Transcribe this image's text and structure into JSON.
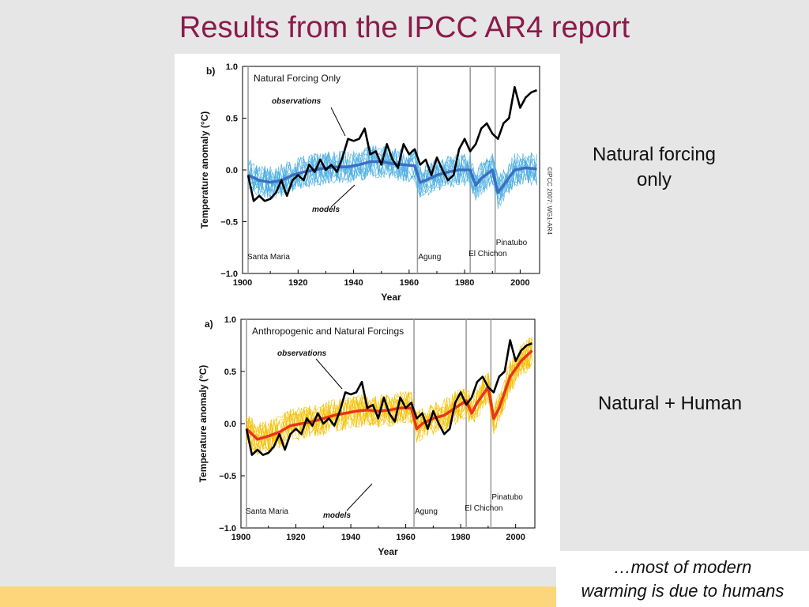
{
  "slide": {
    "title": "Results from the IPCC AR4 report",
    "label_top": "Natural forcing only",
    "label_bottom": "Natural + Human",
    "conclusion_line1": "…most of modern",
    "conclusion_line2": "warming is due to humans"
  },
  "colors": {
    "title": "#8b1a4a",
    "observations": "#000000",
    "natural_models": "#4aaee0",
    "natural_mean": "#3a6fc4",
    "anthro_models": "#f5c000",
    "anthro_mean": "#e8341c",
    "volcano_line": "#999999",
    "footer": "#fdd57a"
  },
  "chart_data": [
    {
      "type": "line",
      "panel_label": "b)",
      "title": "Natural Forcing Only",
      "xlabel": "Year",
      "ylabel": "Temperature anomaly (°C)",
      "xlim": [
        1900,
        2007
      ],
      "ylim": [
        -1.0,
        1.0
      ],
      "xticks": [
        "1900",
        "1920",
        "1940",
        "1960",
        "1980",
        "2000"
      ],
      "yticks": [
        "1.0",
        "0.5",
        "0.0",
        "−0.5",
        "−1.0"
      ],
      "copyright": "©IPCC 2007: WG1-AR4",
      "annotations": {
        "observations": "observations",
        "models": "models"
      },
      "volcanoes": [
        {
          "name": "Santa Maria",
          "year": 1902
        },
        {
          "name": "Agung",
          "year": 1963
        },
        {
          "name": "El Chichon",
          "year": 1982
        },
        {
          "name": "Pinatubo",
          "year": 1991
        }
      ],
      "series": [
        {
          "name": "observations",
          "x": [
            1902,
            1904,
            1906,
            1908,
            1910,
            1912,
            1914,
            1916,
            1918,
            1920,
            1922,
            1924,
            1926,
            1928,
            1930,
            1932,
            1934,
            1936,
            1938,
            1940,
            1942,
            1944,
            1946,
            1948,
            1950,
            1952,
            1954,
            1956,
            1958,
            1960,
            1962,
            1964,
            1966,
            1968,
            1970,
            1972,
            1974,
            1976,
            1978,
            1980,
            1982,
            1984,
            1986,
            1988,
            1990,
            1992,
            1994,
            1996,
            1998,
            2000,
            2002,
            2004,
            2006
          ],
          "values": [
            -0.05,
            -0.3,
            -0.25,
            -0.3,
            -0.28,
            -0.22,
            -0.1,
            -0.25,
            -0.1,
            -0.05,
            -0.1,
            0.05,
            -0.02,
            0.1,
            0.0,
            0.05,
            -0.02,
            0.12,
            0.3,
            0.28,
            0.3,
            0.4,
            0.15,
            0.18,
            0.05,
            0.25,
            0.1,
            0.02,
            0.25,
            0.15,
            0.2,
            0.05,
            0.1,
            -0.05,
            0.12,
            0.0,
            -0.1,
            -0.05,
            0.2,
            0.3,
            0.18,
            0.25,
            0.4,
            0.45,
            0.35,
            0.3,
            0.45,
            0.5,
            0.8,
            0.6,
            0.7,
            0.75,
            0.77
          ]
        },
        {
          "name": "models",
          "x": [
            1902,
            1906,
            1910,
            1914,
            1918,
            1922,
            1926,
            1930,
            1934,
            1938,
            1942,
            1946,
            1950,
            1954,
            1958,
            1962,
            1964,
            1966,
            1970,
            1974,
            1978,
            1982,
            1984,
            1986,
            1990,
            1992,
            1994,
            1998,
            2002,
            2006
          ],
          "values": [
            -0.05,
            -0.1,
            -0.12,
            -0.1,
            -0.05,
            -0.02,
            0.0,
            0.02,
            0.03,
            0.03,
            0.05,
            0.08,
            0.08,
            0.06,
            0.05,
            0.04,
            -0.12,
            -0.1,
            -0.05,
            -0.02,
            0.0,
            0.0,
            -0.15,
            -0.08,
            0.0,
            -0.22,
            -0.15,
            0.0,
            0.02,
            0.01
          ]
        }
      ]
    },
    {
      "type": "line",
      "panel_label": "a)",
      "title": "Anthropogenic and Natural Forcings",
      "xlabel": "Year",
      "ylabel": "Temperature anomaly (°C)",
      "xlim": [
        1900,
        2007
      ],
      "ylim": [
        -1.0,
        1.0
      ],
      "xticks": [
        "1900",
        "1920",
        "1940",
        "1960",
        "1980",
        "2000"
      ],
      "yticks": [
        "1.0",
        "0.5",
        "0.0",
        "−0.5",
        "−1.0"
      ],
      "annotations": {
        "observations": "observations",
        "models": "models"
      },
      "volcanoes": [
        {
          "name": "Santa Maria",
          "year": 1902
        },
        {
          "name": "Agung",
          "year": 1963
        },
        {
          "name": "El Chichon",
          "year": 1982
        },
        {
          "name": "Pinatubo",
          "year": 1991
        }
      ],
      "series": [
        {
          "name": "observations",
          "x": [
            1902,
            1904,
            1906,
            1908,
            1910,
            1912,
            1914,
            1916,
            1918,
            1920,
            1922,
            1924,
            1926,
            1928,
            1930,
            1932,
            1934,
            1936,
            1938,
            1940,
            1942,
            1944,
            1946,
            1948,
            1950,
            1952,
            1954,
            1956,
            1958,
            1960,
            1962,
            1964,
            1966,
            1968,
            1970,
            1972,
            1974,
            1976,
            1978,
            1980,
            1982,
            1984,
            1986,
            1988,
            1990,
            1992,
            1994,
            1996,
            1998,
            2000,
            2002,
            2004,
            2006
          ],
          "values": [
            -0.05,
            -0.3,
            -0.25,
            -0.3,
            -0.28,
            -0.22,
            -0.1,
            -0.25,
            -0.1,
            -0.05,
            -0.1,
            0.05,
            -0.02,
            0.1,
            0.0,
            0.05,
            -0.02,
            0.12,
            0.3,
            0.28,
            0.3,
            0.4,
            0.15,
            0.18,
            0.05,
            0.25,
            0.1,
            0.02,
            0.25,
            0.15,
            0.2,
            0.05,
            0.1,
            -0.05,
            0.12,
            0.0,
            -0.1,
            -0.05,
            0.2,
            0.3,
            0.18,
            0.25,
            0.4,
            0.45,
            0.35,
            0.3,
            0.45,
            0.5,
            0.8,
            0.6,
            0.7,
            0.75,
            0.77
          ]
        },
        {
          "name": "models",
          "x": [
            1902,
            1906,
            1910,
            1914,
            1918,
            1922,
            1926,
            1930,
            1934,
            1938,
            1942,
            1946,
            1950,
            1954,
            1958,
            1962,
            1964,
            1966,
            1970,
            1974,
            1978,
            1982,
            1984,
            1986,
            1990,
            1992,
            1994,
            1998,
            2002,
            2006
          ],
          "values": [
            -0.05,
            -0.15,
            -0.12,
            -0.08,
            -0.02,
            0.0,
            0.02,
            0.05,
            0.08,
            0.1,
            0.12,
            0.13,
            0.12,
            0.13,
            0.15,
            0.15,
            -0.05,
            0.0,
            0.05,
            0.08,
            0.15,
            0.22,
            0.1,
            0.2,
            0.35,
            0.05,
            0.15,
            0.45,
            0.6,
            0.7
          ]
        }
      ]
    }
  ]
}
